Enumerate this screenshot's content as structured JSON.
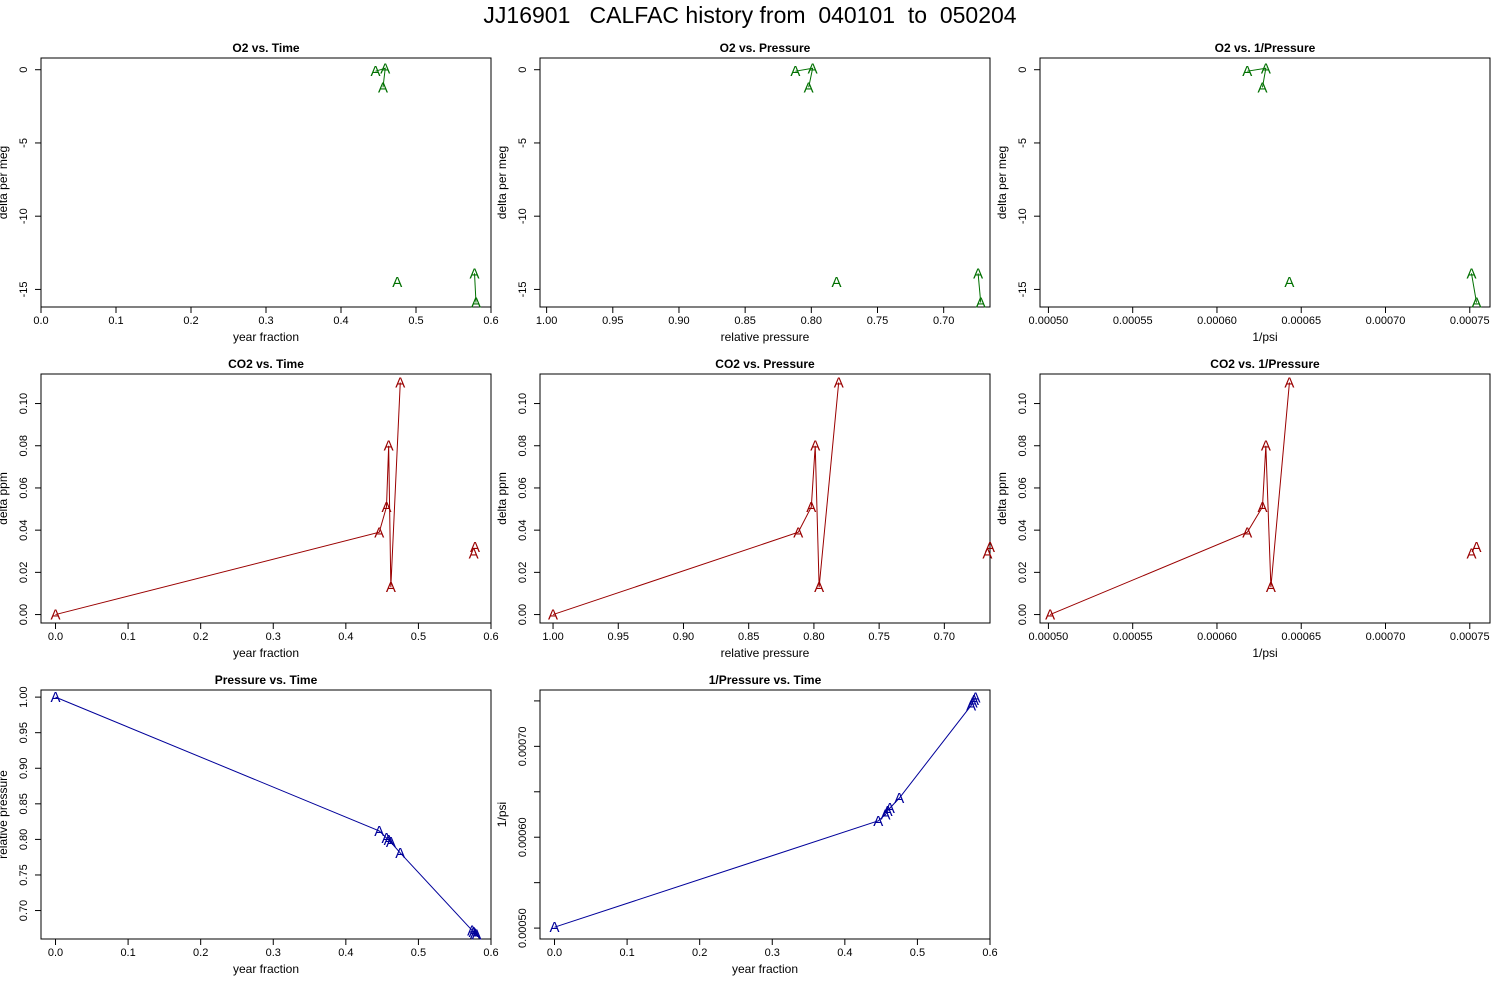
{
  "title": "JJ16901   CALFAC history from  040101  to  050204",
  "colors": {
    "o2": "#007000",
    "co2": "#9a0000",
    "pressure": "#00009a"
  },
  "chart_data": [
    {
      "type": "line",
      "title": "O2 vs. Time",
      "xlabel": "year fraction",
      "ylabel": "delta per meg",
      "xlim": [
        0,
        0.6
      ],
      "ylim": [
        -16.2,
        0.8
      ],
      "xticks": [
        0,
        0.1,
        0.2,
        0.3,
        0.4,
        0.5,
        0.6
      ],
      "xtick_labels": [
        "0.0",
        "0.1",
        "0.2",
        "0.3",
        "0.4",
        "0.5",
        "0.6"
      ],
      "yticks": [
        0,
        -5,
        -10,
        -15
      ],
      "ytick_labels": [
        "0",
        "-5",
        "-10",
        "-15"
      ],
      "color": "o2",
      "marker": "A",
      "series": [
        {
          "x": [
            0.446,
            0.459,
            0.456
          ],
          "y": [
            -0.1,
            0.1,
            -1.2
          ],
          "connected": true
        },
        {
          "x": [
            0.475
          ],
          "y": [
            -14.5
          ],
          "connected": false
        },
        {
          "x": [
            0.578,
            0.58
          ],
          "y": [
            -13.9,
            -15.9
          ],
          "connected": true
        }
      ]
    },
    {
      "type": "line",
      "title": "O2 vs. Pressure",
      "xlabel": "relative pressure",
      "ylabel": "delta per meg",
      "xlim": [
        1.005,
        0.665
      ],
      "ylim": [
        -16.2,
        0.8
      ],
      "xticks": [
        1.0,
        0.95,
        0.9,
        0.85,
        0.8,
        0.75,
        0.7
      ],
      "xtick_labels": [
        "1.00",
        "0.95",
        "0.90",
        "0.85",
        "0.80",
        "0.75",
        "0.70"
      ],
      "yticks": [
        0,
        -5,
        -10,
        -15
      ],
      "ytick_labels": [
        "0",
        "-5",
        "-10",
        "-15"
      ],
      "color": "o2",
      "marker": "A",
      "series": [
        {
          "x": [
            0.812,
            0.799,
            0.802
          ],
          "y": [
            -0.1,
            0.1,
            -1.2
          ],
          "connected": true
        },
        {
          "x": [
            0.781
          ],
          "y": [
            -14.5
          ],
          "connected": false
        },
        {
          "x": [
            0.674,
            0.672
          ],
          "y": [
            -13.9,
            -15.9
          ],
          "connected": true
        }
      ]
    },
    {
      "type": "line",
      "title": "O2 vs. 1/Pressure",
      "xlabel": "1/psi",
      "ylabel": "delta per meg",
      "xlim": [
        0.000495,
        0.000762
      ],
      "ylim": [
        -16.2,
        0.8
      ],
      "xticks": [
        0.0005,
        0.00055,
        0.0006,
        0.00065,
        0.0007,
        0.00075
      ],
      "xtick_labels": [
        "0.00050",
        "0.00055",
        "0.00060",
        "0.00065",
        "0.00070",
        "0.00075"
      ],
      "yticks": [
        0,
        -5,
        -10,
        -15
      ],
      "ytick_labels": [
        "0",
        "-5",
        "-10",
        "-15"
      ],
      "color": "o2",
      "marker": "A",
      "series": [
        {
          "x": [
            0.000618,
            0.000629,
            0.000627
          ],
          "y": [
            -0.1,
            0.1,
            -1.2
          ],
          "connected": true
        },
        {
          "x": [
            0.000643
          ],
          "y": [
            -14.5
          ],
          "connected": false
        },
        {
          "x": [
            0.000751,
            0.000754
          ],
          "y": [
            -13.9,
            -15.9
          ],
          "connected": true
        }
      ]
    },
    {
      "type": "line",
      "title": "CO2 vs. Time",
      "xlabel": "year fraction",
      "ylabel": "delta ppm",
      "xlim": [
        -0.02,
        0.6
      ],
      "ylim": [
        -0.004,
        0.114
      ],
      "xticks": [
        0,
        0.1,
        0.2,
        0.3,
        0.4,
        0.5,
        0.6
      ],
      "xtick_labels": [
        "0.0",
        "0.1",
        "0.2",
        "0.3",
        "0.4",
        "0.5",
        "0.6"
      ],
      "yticks": [
        0,
        0.02,
        0.04,
        0.06,
        0.08,
        0.1
      ],
      "ytick_labels": [
        "0.00",
        "0.02",
        "0.04",
        "0.06",
        "0.08",
        "0.10"
      ],
      "color": "co2",
      "marker": "A",
      "series": [
        {
          "x": [
            0.0,
            0.446,
            0.456,
            0.459,
            0.462,
            0.475
          ],
          "y": [
            0.0,
            0.039,
            0.051,
            0.08,
            0.013,
            0.11
          ],
          "connected": true
        },
        {
          "x": [
            0.578,
            0.576
          ],
          "y": [
            0.032,
            0.029
          ],
          "connected": false
        }
      ]
    },
    {
      "type": "line",
      "title": "CO2 vs. Pressure",
      "xlabel": "relative pressure",
      "ylabel": "delta ppm",
      "xlim": [
        1.01,
        0.665
      ],
      "ylim": [
        -0.004,
        0.114
      ],
      "xticks": [
        1.0,
        0.95,
        0.9,
        0.85,
        0.8,
        0.75,
        0.7
      ],
      "xtick_labels": [
        "1.00",
        "0.95",
        "0.90",
        "0.85",
        "0.80",
        "0.75",
        "0.70"
      ],
      "yticks": [
        0,
        0.02,
        0.04,
        0.06,
        0.08,
        0.1
      ],
      "ytick_labels": [
        "0.00",
        "0.02",
        "0.04",
        "0.06",
        "0.08",
        "0.10"
      ],
      "color": "co2",
      "marker": "A",
      "series": [
        {
          "x": [
            1.0,
            0.812,
            0.802,
            0.799,
            0.796,
            0.781
          ],
          "y": [
            0.0,
            0.039,
            0.051,
            0.08,
            0.013,
            0.11
          ],
          "connected": true
        },
        {
          "x": [
            0.665,
            0.667
          ],
          "y": [
            0.032,
            0.029
          ],
          "connected": false
        }
      ]
    },
    {
      "type": "line",
      "title": "CO2 vs. 1/Pressure",
      "xlabel": "1/psi",
      "ylabel": "delta ppm",
      "xlim": [
        0.000495,
        0.000762
      ],
      "ylim": [
        -0.004,
        0.114
      ],
      "xticks": [
        0.0005,
        0.00055,
        0.0006,
        0.00065,
        0.0007,
        0.00075
      ],
      "xtick_labels": [
        "0.00050",
        "0.00055",
        "0.00060",
        "0.00065",
        "0.00070",
        "0.00075"
      ],
      "yticks": [
        0,
        0.02,
        0.04,
        0.06,
        0.08,
        0.1
      ],
      "ytick_labels": [
        "0.00",
        "0.02",
        "0.04",
        "0.06",
        "0.08",
        "0.10"
      ],
      "color": "co2",
      "marker": "A",
      "series": [
        {
          "x": [
            0.000501,
            0.000618,
            0.000627,
            0.000629,
            0.000632,
            0.000643
          ],
          "y": [
            0.0,
            0.039,
            0.051,
            0.08,
            0.013,
            0.11
          ],
          "connected": true
        },
        {
          "x": [
            0.000754,
            0.000751
          ],
          "y": [
            0.032,
            0.029
          ],
          "connected": false
        }
      ]
    },
    {
      "type": "line",
      "title": "Pressure vs. Time",
      "xlabel": "year fraction",
      "ylabel": "relative pressure",
      "xlim": [
        -0.02,
        0.6
      ],
      "ylim": [
        0.66,
        1.01
      ],
      "xticks": [
        0,
        0.1,
        0.2,
        0.3,
        0.4,
        0.5,
        0.6
      ],
      "xtick_labels": [
        "0.0",
        "0.1",
        "0.2",
        "0.3",
        "0.4",
        "0.5",
        "0.6"
      ],
      "yticks": [
        0.7,
        0.75,
        0.8,
        0.85,
        0.9,
        0.95,
        1.0
      ],
      "ytick_labels": [
        "0.70",
        "0.75",
        "0.80",
        "0.85",
        "0.90",
        "0.95",
        "1.00"
      ],
      "color": "pressure",
      "marker": "A",
      "series": [
        {
          "x": [
            0.0,
            0.446,
            0.456,
            0.459,
            0.462,
            0.475,
            0.574,
            0.576,
            0.578,
            0.58
          ],
          "y": [
            1.0,
            0.812,
            0.802,
            0.799,
            0.796,
            0.781,
            0.672,
            0.67,
            0.668,
            0.666
          ],
          "connected": true
        }
      ]
    },
    {
      "type": "line",
      "title": "1/Pressure vs. Time",
      "xlabel": "year fraction",
      "ylabel": "1/psi",
      "xlim": [
        -0.02,
        0.6
      ],
      "ylim": [
        0.000488,
        0.000762
      ],
      "xticks": [
        0,
        0.1,
        0.2,
        0.3,
        0.4,
        0.5,
        0.6
      ],
      "xtick_labels": [
        "0.0",
        "0.1",
        "0.2",
        "0.3",
        "0.4",
        "0.5",
        "0.6"
      ],
      "yticks": [
        0.0005,
        0.00055,
        0.0006,
        0.00065,
        0.0007,
        0.00075
      ],
      "ytick_labels": [
        "0.00050",
        "",
        "0.00060",
        "",
        "0.00070",
        ""
      ],
      "color": "pressure",
      "marker": "A",
      "series": [
        {
          "x": [
            0.0,
            0.446,
            0.456,
            0.459,
            0.462,
            0.475,
            0.574,
            0.576,
            0.578,
            0.58
          ],
          "y": [
            0.000501,
            0.000618,
            0.000625,
            0.000629,
            0.000632,
            0.000643,
            0.000745,
            0.000748,
            0.000751,
            0.000754
          ],
          "connected": true
        }
      ]
    }
  ]
}
